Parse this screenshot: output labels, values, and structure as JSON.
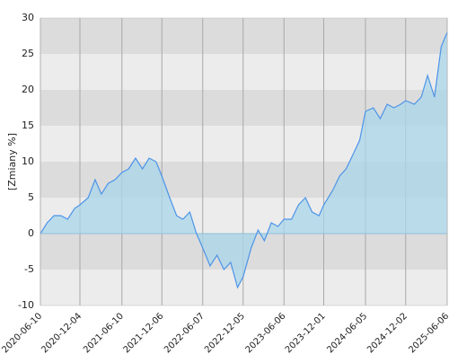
{
  "chart_data": {
    "type": "area",
    "y_label": "[Zmiany %]",
    "x": [
      "2020-06-10",
      "2020-07-10",
      "2020-08-10",
      "2020-09-10",
      "2020-10-10",
      "2020-11-10",
      "2020-12-04",
      "2021-01-10",
      "2021-02-10",
      "2021-03-10",
      "2021-04-10",
      "2021-05-10",
      "2021-06-10",
      "2021-07-10",
      "2021-08-10",
      "2021-09-10",
      "2021-10-10",
      "2021-11-10",
      "2021-12-06",
      "2022-01-10",
      "2022-02-10",
      "2022-03-10",
      "2022-04-10",
      "2022-05-10",
      "2022-06-07",
      "2022-07-10",
      "2022-08-10",
      "2022-09-10",
      "2022-10-10",
      "2022-11-10",
      "2022-12-05",
      "2023-01-10",
      "2023-02-10",
      "2023-03-10",
      "2023-04-10",
      "2023-05-10",
      "2023-06-06",
      "2023-07-10",
      "2023-08-10",
      "2023-09-10",
      "2023-10-10",
      "2023-11-10",
      "2023-12-01",
      "2024-01-10",
      "2024-02-10",
      "2024-03-10",
      "2024-04-10",
      "2024-05-10",
      "2024-06-05",
      "2024-07-10",
      "2024-08-10",
      "2024-09-10",
      "2024-10-10",
      "2024-11-10",
      "2024-12-02",
      "2025-01-10",
      "2025-02-10",
      "2025-03-10",
      "2025-04-10",
      "2025-05-10",
      "2025-06-06"
    ],
    "series": [
      {
        "name": "Zmiany",
        "color": "#4d94e8",
        "fill": "#a9d5ea",
        "values": [
          0,
          1.5,
          2.5,
          2.5,
          2,
          3.5,
          4,
          5,
          7.5,
          5.5,
          7,
          7.5,
          8.5,
          9,
          10.5,
          9,
          10.5,
          10,
          8,
          5,
          2.5,
          2,
          3,
          0,
          -2,
          -4.5,
          -3,
          -5,
          -4,
          -7.5,
          -6,
          -2,
          0.5,
          -1,
          1.5,
          1,
          2,
          2,
          4,
          5,
          3,
          2.5,
          4,
          6,
          8,
          9,
          11,
          13,
          17,
          17.5,
          16,
          18,
          17.5,
          18,
          18.5,
          18,
          19,
          22,
          19,
          26,
          28
        ]
      }
    ],
    "xlim": [
      "2020-06-10",
      "2025-06-06"
    ],
    "xticks": [
      "2020-06-10",
      "2020-12-04",
      "2021-06-10",
      "2021-12-06",
      "2022-06-07",
      "2022-12-05",
      "2023-06-06",
      "2023-12-01",
      "2024-06-05",
      "2024-12-02",
      "2025-06-06"
    ],
    "ylim": [
      -10,
      30
    ],
    "yticks": [
      -10,
      -5,
      0,
      5,
      10,
      15,
      20,
      25,
      30
    ],
    "grid": true
  }
}
